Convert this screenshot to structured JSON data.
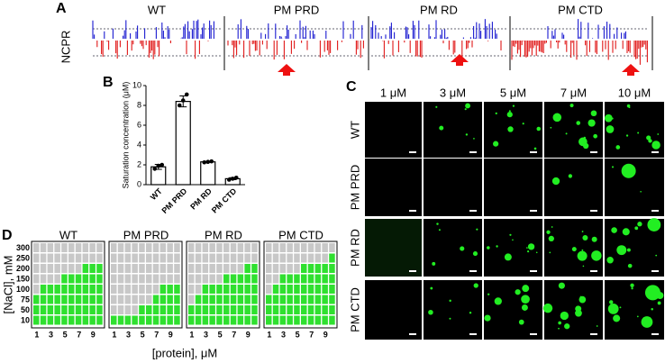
{
  "panel_a": {
    "label": "A",
    "ylabel": "NCPR",
    "titles": [
      "WT",
      "PM PRD",
      "PM RD",
      "PM CTD"
    ]
  },
  "panel_c": {
    "label": "C",
    "columns": [
      "1 μM",
      "3 μM",
      "5 μM",
      "7 μM",
      "10 μM"
    ],
    "rows": [
      "WT",
      "PM PRD",
      "PM RD",
      "PM CTD"
    ]
  },
  "chart_data": [
    {
      "type": "bar",
      "label": "B",
      "ylabel": "Saturation concentration (μM)",
      "categories": [
        "WT",
        "PM PRD",
        "PM RD",
        "PM CTD"
      ],
      "values": [
        1.8,
        8.4,
        2.3,
        0.6
      ],
      "errors": [
        0.25,
        0.55,
        0.05,
        0.1
      ],
      "points": [
        [
          1.6,
          1.9,
          2.0
        ],
        [
          8.0,
          8.5,
          9.1
        ],
        [
          2.25,
          2.3,
          2.35
        ],
        [
          0.5,
          0.6,
          0.7
        ]
      ],
      "color": "#ffffff",
      "ylim": [
        0,
        10
      ],
      "yticks": [
        0,
        2,
        4,
        6,
        8,
        10
      ]
    },
    {
      "type": "heatmap",
      "label": "D",
      "xlabel": "[protein], μM",
      "ylabel": "[NaCl], mM",
      "y": [
        300,
        250,
        200,
        150,
        100,
        75,
        50,
        10
      ],
      "x": [
        1,
        2,
        3,
        4,
        5,
        6,
        7,
        8,
        9,
        10
      ],
      "xticks": [
        1,
        3,
        5,
        7,
        9
      ],
      "colors": [
        "#c8c8c8",
        "#2fe02f"
      ],
      "panels": [
        {
          "title": "WT",
          "values": [
            [
              0,
              0,
              0,
              0,
              0,
              0,
              0,
              0,
              0,
              0
            ],
            [
              0,
              0,
              0,
              0,
              0,
              0,
              0,
              0,
              0,
              0
            ],
            [
              0,
              0,
              0,
              0,
              0,
              0,
              0,
              1,
              1,
              1
            ],
            [
              0,
              0,
              0,
              0,
              1,
              1,
              1,
              1,
              1,
              1
            ],
            [
              0,
              1,
              1,
              1,
              1,
              1,
              1,
              1,
              1,
              1
            ],
            [
              1,
              1,
              1,
              1,
              1,
              1,
              1,
              1,
              1,
              1
            ],
            [
              1,
              1,
              1,
              1,
              1,
              1,
              1,
              1,
              1,
              1
            ],
            [
              1,
              1,
              1,
              1,
              1,
              1,
              1,
              1,
              1,
              1
            ]
          ]
        },
        {
          "title": "PM PRD",
          "values": [
            [
              0,
              0,
              0,
              0,
              0,
              0,
              0,
              0,
              0,
              0
            ],
            [
              0,
              0,
              0,
              0,
              0,
              0,
              0,
              0,
              0,
              0
            ],
            [
              0,
              0,
              0,
              0,
              0,
              0,
              0,
              0,
              0,
              0
            ],
            [
              0,
              0,
              0,
              0,
              0,
              0,
              0,
              0,
              0,
              0
            ],
            [
              0,
              0,
              0,
              0,
              0,
              0,
              0,
              1,
              1,
              1
            ],
            [
              0,
              0,
              0,
              0,
              0,
              0,
              1,
              1,
              1,
              1
            ],
            [
              0,
              0,
              0,
              0,
              1,
              1,
              1,
              1,
              1,
              1
            ],
            [
              1,
              1,
              1,
              1,
              1,
              1,
              1,
              1,
              1,
              1
            ]
          ]
        },
        {
          "title": "PM RD",
          "values": [
            [
              0,
              0,
              0,
              0,
              0,
              0,
              0,
              0,
              0,
              0
            ],
            [
              0,
              0,
              0,
              0,
              0,
              0,
              0,
              0,
              0,
              0
            ],
            [
              0,
              0,
              0,
              0,
              0,
              0,
              0,
              0,
              1,
              1
            ],
            [
              0,
              0,
              0,
              0,
              0,
              1,
              1,
              1,
              1,
              1
            ],
            [
              0,
              0,
              1,
              1,
              1,
              1,
              1,
              1,
              1,
              1
            ],
            [
              0,
              1,
              1,
              1,
              1,
              1,
              1,
              1,
              1,
              1
            ],
            [
              1,
              1,
              1,
              1,
              1,
              1,
              1,
              1,
              1,
              1
            ],
            [
              1,
              1,
              1,
              1,
              1,
              1,
              1,
              1,
              1,
              1
            ]
          ]
        },
        {
          "title": "PM CTD",
          "values": [
            [
              0,
              0,
              0,
              0,
              0,
              0,
              0,
              0,
              0,
              0
            ],
            [
              0,
              0,
              0,
              0,
              0,
              0,
              0,
              0,
              0,
              1
            ],
            [
              0,
              0,
              0,
              0,
              0,
              1,
              1,
              1,
              1,
              1
            ],
            [
              0,
              0,
              1,
              1,
              1,
              1,
              1,
              1,
              1,
              1
            ],
            [
              0,
              1,
              1,
              1,
              1,
              1,
              1,
              1,
              1,
              1
            ],
            [
              1,
              1,
              1,
              1,
              1,
              1,
              1,
              1,
              1,
              1
            ],
            [
              1,
              1,
              1,
              1,
              1,
              1,
              1,
              1,
              1,
              1
            ],
            [
              1,
              1,
              1,
              1,
              1,
              1,
              1,
              1,
              1,
              1
            ]
          ]
        }
      ]
    }
  ]
}
